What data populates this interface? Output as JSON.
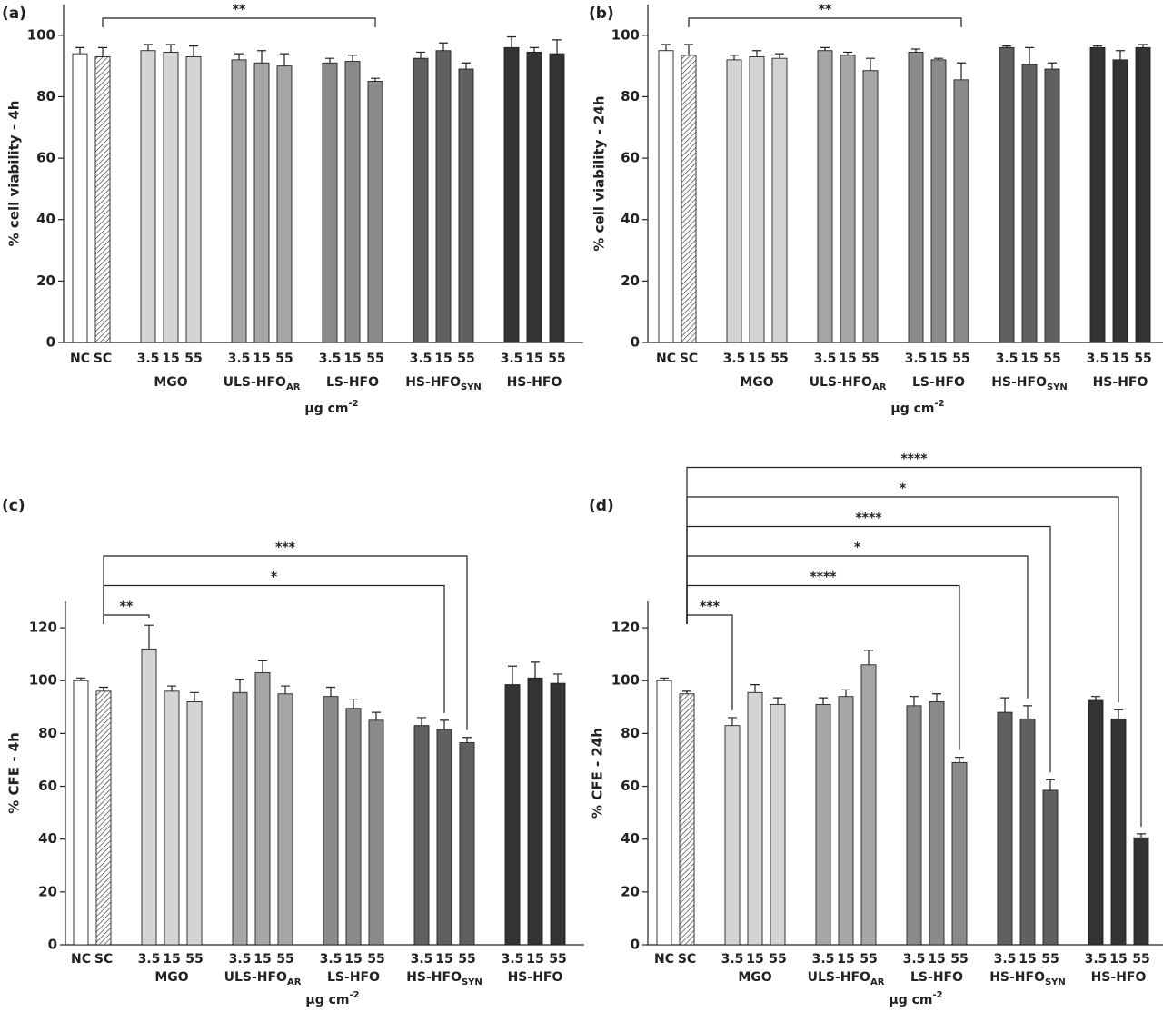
{
  "chart_data": [
    {
      "type": "bar",
      "label": "(a)",
      "ylabel": "% cell viability - 4h",
      "xlabel": {
        "text": "μg cm",
        "sup": "-2"
      },
      "ylim": [
        0,
        110
      ],
      "yticks": [
        0,
        20,
        40,
        60,
        80,
        100
      ],
      "groups": [
        {
          "name": null,
          "categories": [
            "NC",
            "SC"
          ],
          "values": [
            94,
            93
          ],
          "errors": [
            2,
            3
          ],
          "colors": [
            "#ffffff",
            "#ffffff"
          ],
          "hatched": [
            false,
            true
          ]
        },
        {
          "name": "MGO",
          "categories": [
            "3.5",
            "15",
            "55"
          ],
          "values": [
            95,
            94.5,
            93
          ],
          "errors": [
            2,
            2.5,
            3.5
          ],
          "color": "#d4d4d4"
        },
        {
          "name": "ULS-HFO",
          "sub": "AR",
          "categories": [
            "3.5",
            "15",
            "55"
          ],
          "values": [
            92,
            91,
            90
          ],
          "errors": [
            2,
            4,
            4
          ],
          "color": "#a6a6a9"
        },
        {
          "name": "LS-HFO",
          "categories": [
            "3.5",
            "15",
            "55"
          ],
          "values": [
            91,
            91.5,
            85
          ],
          "errors": [
            1.5,
            2,
            1
          ],
          "color": "#8a8a8a"
        },
        {
          "name": "HS-HFO",
          "sub": "SYN",
          "categories": [
            "3.5",
            "15",
            "55"
          ],
          "values": [
            92.5,
            95,
            89
          ],
          "errors": [
            2,
            2.5,
            2
          ],
          "color": "#606060"
        },
        {
          "name": "HS-HFO",
          "categories": [
            "3.5",
            "15",
            "55"
          ],
          "values": [
            96,
            94.5,
            94
          ],
          "errors": [
            3.5,
            1.5,
            4.5
          ],
          "color": "#333333"
        }
      ],
      "brackets": [
        {
          "from": [
            0,
            1
          ],
          "to": [
            3,
            2
          ],
          "label": "**"
        }
      ]
    },
    {
      "type": "bar",
      "label": "(b)",
      "ylabel": "% cell viability - 24h",
      "xlabel": {
        "text": "μg cm",
        "sup": "-2"
      },
      "ylim": [
        0,
        110
      ],
      "yticks": [
        0,
        20,
        40,
        60,
        80,
        100
      ],
      "groups": [
        {
          "name": null,
          "categories": [
            "NC",
            "SC"
          ],
          "values": [
            95,
            93.5
          ],
          "errors": [
            2,
            3.5
          ],
          "colors": [
            "#ffffff",
            "#ffffff"
          ],
          "hatched": [
            false,
            true
          ]
        },
        {
          "name": "MGO",
          "categories": [
            "3.5",
            "15",
            "55"
          ],
          "values": [
            92,
            93,
            92.5
          ],
          "errors": [
            1.5,
            2,
            1.5
          ],
          "color": "#d4d4d4"
        },
        {
          "name": "ULS-HFO",
          "sub": "AR",
          "categories": [
            "3.5",
            "15",
            "55"
          ],
          "values": [
            95,
            93.5,
            88.5
          ],
          "errors": [
            1,
            1,
            4
          ],
          "color": "#a6a6a9"
        },
        {
          "name": "LS-HFO",
          "categories": [
            "3.5",
            "15",
            "55"
          ],
          "values": [
            94.5,
            92,
            85.5
          ],
          "errors": [
            1,
            0.5,
            5.5
          ],
          "color": "#8a8a8a"
        },
        {
          "name": "HS-HFO",
          "sub": "SYN",
          "categories": [
            "3.5",
            "15",
            "55"
          ],
          "values": [
            96,
            90.5,
            89
          ],
          "errors": [
            0.5,
            5.5,
            2
          ],
          "color": "#606060"
        },
        {
          "name": "HS-HFO",
          "categories": [
            "3.5",
            "15",
            "55"
          ],
          "values": [
            96,
            92,
            96
          ],
          "errors": [
            0.5,
            3,
            1
          ],
          "color": "#333333"
        }
      ],
      "brackets": [
        {
          "from": [
            0,
            1
          ],
          "to": [
            3,
            2
          ],
          "label": "**"
        }
      ]
    },
    {
      "type": "bar",
      "label": "(c)",
      "ylabel": "% CFE - 4h",
      "xlabel": {
        "text": "μg cm",
        "sup": "-2"
      },
      "ylim": [
        0,
        130
      ],
      "yticks": [
        0,
        20,
        40,
        60,
        80,
        100,
        120
      ],
      "groups": [
        {
          "name": null,
          "categories": [
            "NC",
            "SC"
          ],
          "values": [
            100,
            96
          ],
          "errors": [
            1,
            1.5
          ],
          "colors": [
            "#ffffff",
            "#ffffff"
          ],
          "hatched": [
            false,
            true
          ]
        },
        {
          "name": "MGO",
          "categories": [
            "3.5",
            "15",
            "55"
          ],
          "values": [
            112,
            96,
            92
          ],
          "errors": [
            9,
            2,
            3.5
          ],
          "color": "#d4d4d4"
        },
        {
          "name": "ULS-HFO",
          "sub": "AR",
          "categories": [
            "3.5",
            "15",
            "55"
          ],
          "values": [
            95.5,
            103,
            95
          ],
          "errors": [
            5,
            4.5,
            3
          ],
          "color": "#a6a6a9"
        },
        {
          "name": "LS-HFO",
          "categories": [
            "3.5",
            "15",
            "55"
          ],
          "values": [
            94,
            89.5,
            85
          ],
          "errors": [
            3.5,
            3.5,
            3
          ],
          "color": "#8a8a8a"
        },
        {
          "name": "HS-HFO",
          "sub": "SYN",
          "categories": [
            "3.5",
            "15",
            "55"
          ],
          "values": [
            83,
            81.5,
            76.5
          ],
          "errors": [
            3,
            3.5,
            2
          ],
          "color": "#606060"
        },
        {
          "name": "HS-HFO",
          "categories": [
            "3.5",
            "15",
            "55"
          ],
          "values": [
            98.5,
            101,
            99
          ],
          "errors": [
            7,
            6,
            3.5
          ],
          "color": "#333333"
        }
      ],
      "brackets": [
        {
          "from": [
            0,
            1
          ],
          "to": [
            1,
            0
          ],
          "label": "**"
        },
        {
          "from": [
            0,
            1
          ],
          "to": [
            4,
            1
          ],
          "label": "*"
        },
        {
          "from": [
            0,
            1
          ],
          "to": [
            4,
            2
          ],
          "label": "***"
        }
      ]
    },
    {
      "type": "bar",
      "label": "(d)",
      "ylabel": "% CFE - 24h",
      "xlabel": {
        "text": "μg cm",
        "sup": "-2"
      },
      "ylim": [
        0,
        130
      ],
      "yticks": [
        0,
        20,
        40,
        60,
        80,
        100,
        120
      ],
      "groups": [
        {
          "name": null,
          "categories": [
            "NC",
            "SC"
          ],
          "values": [
            100,
            95
          ],
          "errors": [
            1,
            1
          ],
          "colors": [
            "#ffffff",
            "#ffffff"
          ],
          "hatched": [
            false,
            true
          ]
        },
        {
          "name": "MGO",
          "categories": [
            "3.5",
            "15",
            "55"
          ],
          "values": [
            83,
            95.5,
            91
          ],
          "errors": [
            3,
            3,
            2.5
          ],
          "color": "#d4d4d4"
        },
        {
          "name": "ULS-HFO",
          "sub": "AR",
          "categories": [
            "3.5",
            "15",
            "55"
          ],
          "values": [
            91,
            94,
            106
          ],
          "errors": [
            2.5,
            2.5,
            5.5
          ],
          "color": "#a6a6a9"
        },
        {
          "name": "LS-HFO",
          "categories": [
            "3.5",
            "15",
            "55"
          ],
          "values": [
            90.5,
            92,
            69
          ],
          "errors": [
            3.5,
            3,
            2
          ],
          "color": "#8a8a8a"
        },
        {
          "name": "HS-HFO",
          "sub": "SYN",
          "categories": [
            "3.5",
            "15",
            "55"
          ],
          "values": [
            88,
            85.5,
            58.5
          ],
          "errors": [
            5.5,
            5,
            4
          ],
          "color": "#606060"
        },
        {
          "name": "HS-HFO",
          "categories": [
            "3.5",
            "15",
            "55"
          ],
          "values": [
            92.5,
            85.5,
            40.5
          ],
          "errors": [
            1.5,
            3.5,
            1.5
          ],
          "color": "#333333"
        }
      ],
      "brackets": [
        {
          "from": [
            0,
            1
          ],
          "to": [
            1,
            0
          ],
          "label": "***"
        },
        {
          "from": [
            0,
            1
          ],
          "to": [
            3,
            2
          ],
          "label": "****"
        },
        {
          "from": [
            0,
            1
          ],
          "to": [
            4,
            1
          ],
          "label": "*"
        },
        {
          "from": [
            0,
            1
          ],
          "to": [
            4,
            2
          ],
          "label": "****"
        },
        {
          "from": [
            0,
            1
          ],
          "to": [
            5,
            1
          ],
          "label": "*"
        },
        {
          "from": [
            0,
            1
          ],
          "to": [
            5,
            2
          ],
          "label": "****"
        }
      ]
    }
  ]
}
